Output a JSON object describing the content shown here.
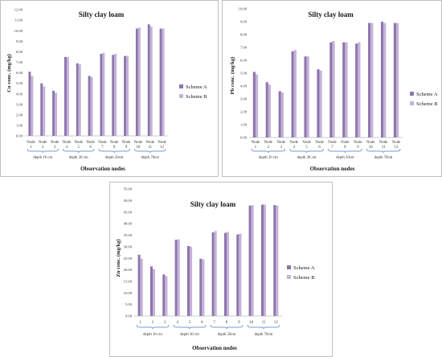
{
  "colors": {
    "scheme_a": "#8e76ad",
    "scheme_b": "#c4b3d8",
    "brace": "#4a7fc0"
  },
  "chart_data": [
    {
      "id": "cu",
      "type": "bar",
      "title": "Silty clay loam",
      "xlabel": "Observation nodes",
      "ylabel": "Cu  conc. (mg/kg)",
      "ylim": [
        0,
        12
      ],
      "yticks": [
        "0.00",
        "1.00",
        "2.00",
        "3.00",
        "4.00",
        "5.00",
        "6.00",
        "7.00",
        "8.00",
        "9.00",
        "10.00",
        "11.00",
        "12.00"
      ],
      "categories": [
        "Node 1",
        "Node 2",
        "Node 3",
        "Node 4",
        "Node 5",
        "Node 6",
        "Node 7",
        "Node 8",
        "Node 9",
        "Node 10",
        "Node 11",
        "Node 12"
      ],
      "cat_top": [
        "Node",
        "Node",
        "Node",
        "Node",
        "Node",
        "Node",
        "Node",
        "Node",
        "Node",
        "Node",
        "Node",
        "Node"
      ],
      "cat_bottom": [
        "1",
        "2",
        "3",
        "4",
        "5",
        "6",
        "7",
        "8",
        "9",
        "10",
        "11",
        "12"
      ],
      "groups": [
        "depth 10 cm",
        "depth 30 cm",
        "depth 50cm",
        "depth 70cm"
      ],
      "series": [
        {
          "name": "Scheme A",
          "values": [
            6.1,
            5.0,
            4.3,
            7.5,
            6.9,
            5.7,
            7.8,
            7.7,
            7.6,
            10.2,
            10.6,
            10.2
          ]
        },
        {
          "name": "Scheme B",
          "values": [
            5.7,
            4.7,
            4.1,
            7.5,
            6.8,
            5.6,
            7.9,
            7.8,
            7.6,
            10.3,
            10.4,
            10.2
          ]
        }
      ]
    },
    {
      "id": "pb",
      "type": "bar",
      "title": "Silty clay loam",
      "xlabel": "Observation nodes",
      "ylabel": "Pb  conc. (mg/kg)",
      "ylim": [
        0,
        10
      ],
      "yticks": [
        "0.00",
        "1.00",
        "2.00",
        "3.00",
        "4.00",
        "5.00",
        "6.00",
        "7.00",
        "8.00",
        "9.00",
        "10.00"
      ],
      "categories": [
        "Node 1",
        "Node 2",
        "Node 3",
        "Node 4",
        "Node 5",
        "Node 6",
        "Node 7",
        "Node 8",
        "Node 9",
        "Node 10",
        "Node 11",
        "Node 12"
      ],
      "cat_top": [
        "Node",
        "Node",
        "Node",
        "Node",
        "Node",
        "Node",
        "Node",
        "Node",
        "Node",
        "Node",
        "Node",
        "Node"
      ],
      "cat_bottom": [
        "1",
        "2",
        "3",
        "4",
        "5",
        "6",
        "7",
        "8",
        "9",
        "10",
        "11",
        "12"
      ],
      "groups": [
        "depth 10 cm",
        "depth 30 cm",
        "depth 50cm",
        "depth 70cm"
      ],
      "series": [
        {
          "name": "Scheme A",
          "values": [
            5.1,
            4.3,
            3.6,
            6.7,
            6.3,
            5.3,
            7.4,
            7.4,
            7.3,
            8.9,
            9.0,
            8.9
          ]
        },
        {
          "name": "Scheme B",
          "values": [
            4.9,
            4.1,
            3.5,
            6.8,
            6.3,
            5.2,
            7.5,
            7.4,
            7.4,
            8.9,
            8.9,
            8.9
          ]
        }
      ]
    },
    {
      "id": "zn",
      "type": "bar",
      "title": "Silty clay loam",
      "xlabel": "Observation nodes",
      "ylabel": "Zn  conc. (mg/kg)",
      "ylim": [
        0,
        55
      ],
      "yticks": [
        "0.00",
        "5.00",
        "10.00",
        "15.00",
        "20.00",
        "25.00",
        "30.00",
        "35.00",
        "40.00",
        "45.00",
        "50.00",
        "55.00"
      ],
      "categories": [
        "1",
        "2",
        "3",
        "4",
        "5",
        "6",
        "7",
        "8",
        "9",
        "10",
        "11",
        "12"
      ],
      "cat_top": [
        "",
        "",
        "",
        "",
        "",
        "",
        "",
        "",
        "",
        "",
        "",
        ""
      ],
      "cat_bottom": [
        "1",
        "2",
        "3",
        "4",
        "5",
        "6",
        "7",
        "8",
        "9",
        "10",
        "11",
        "12"
      ],
      "groups": [
        "depth 10 cm",
        "depth 30 cm",
        "depth 50cm",
        "depth 70cm"
      ],
      "series": [
        {
          "name": "Scheme A",
          "values": [
            26.5,
            21.5,
            18.0,
            33.0,
            30.3,
            24.8,
            36.2,
            36.0,
            35.3,
            47.8,
            48.2,
            48.0
          ]
        },
        {
          "name": "Scheme B",
          "values": [
            24.8,
            20.3,
            17.3,
            33.2,
            30.0,
            24.5,
            36.8,
            36.4,
            35.7,
            48.0,
            48.2,
            47.8
          ]
        }
      ]
    }
  ]
}
